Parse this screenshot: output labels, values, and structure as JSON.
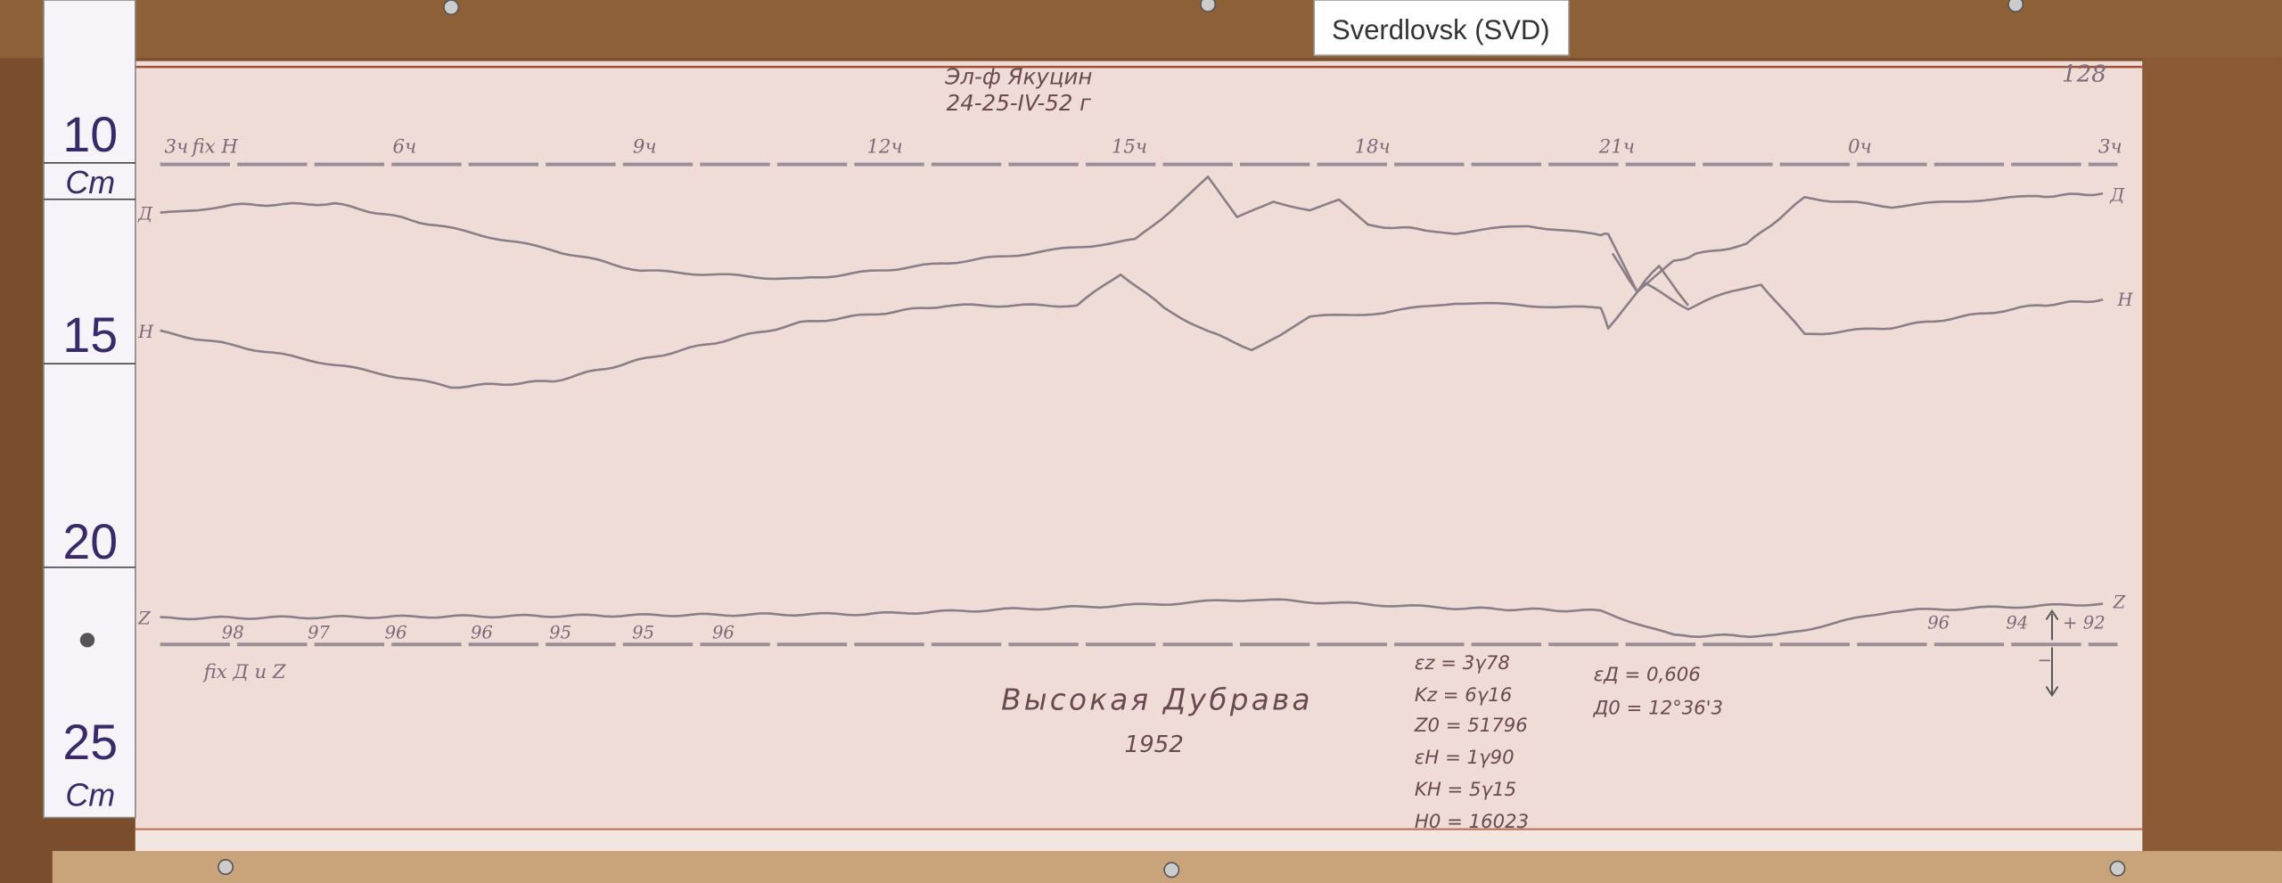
{
  "station_label": "Sverdlovsk (SVD)",
  "header": {
    "line1": "Эл-ф Якуцин",
    "line2": "24-25-IV-52 г",
    "sheet_number": "128"
  },
  "ruler": {
    "marks": [
      "10",
      "15",
      "20",
      "25"
    ],
    "unit_top": "Cm",
    "unit_bottom": "Cm"
  },
  "time_axis": {
    "fix_label": "fix H",
    "ticks": [
      "3ч",
      "6ч",
      "9ч",
      "12ч",
      "15ч",
      "18ч",
      "21ч",
      "0ч",
      "3ч"
    ]
  },
  "traces": {
    "D": {
      "left": "Д",
      "right": "Д"
    },
    "H": {
      "left": "H",
      "right": "H"
    },
    "Z": {
      "left": "Z",
      "right": "Z"
    }
  },
  "bottom_axis": {
    "fix_label": "fix Д и Z",
    "temps_left": [
      "98",
      "97",
      "96",
      "96",
      "95",
      "95",
      "96"
    ],
    "temps_right": [
      "96",
      "94",
      "+ 92"
    ],
    "minus_sign": "−"
  },
  "title": {
    "name": "Высокая Дубрава",
    "year": "1952"
  },
  "constants_left": [
    "εz = 3γ78",
    "Kz = 6γ16",
    "Z0 = 51796",
    "εH = 1γ90",
    "KH = 5γ15",
    "H0 = 16023"
  ],
  "constants_right": [
    "εД = 0,606",
    "Д0 = 12°36'3"
  ],
  "colors": {
    "wood": "#7a4e2c",
    "paper": "#efdcd6",
    "trace": "#8a7f88",
    "ruler": "#f6f4f8"
  }
}
